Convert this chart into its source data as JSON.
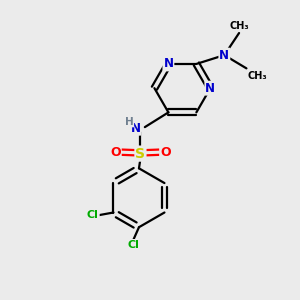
{
  "bg_color": "#ebebeb",
  "atom_colors": {
    "C": "#000000",
    "N": "#0000cc",
    "S": "#cccc00",
    "O": "#ff0000",
    "Cl": "#00aa00",
    "H": "#708090"
  },
  "bond_color": "#000000",
  "figsize": [
    3.0,
    3.0
  ],
  "dpi": 100
}
